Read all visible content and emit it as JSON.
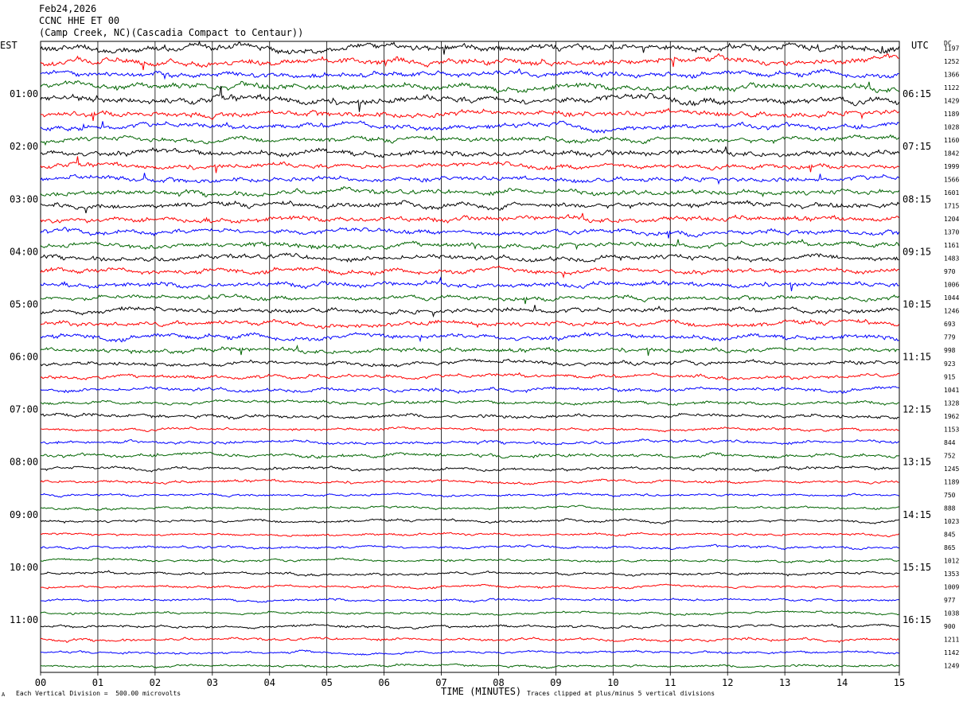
{
  "header": {
    "date": "Feb24,2026",
    "channel": "CCNC HHE ET 00",
    "site": "(Camp Creek, NC)(Cascadia Compact to Centaur))"
  },
  "left_label": "EST",
  "right_label": "UTC",
  "dc_label": "DC",
  "footer": {
    "scale_note": "Each Vertical Division =  500.00 microvolts",
    "clip_note": "Traces clipped at plus/minus 5 vertical divisions",
    "glyph": "A"
  },
  "colors": {
    "cycle": [
      "#000000",
      "#ff0000",
      "#0000ff",
      "#006400"
    ],
    "grid": "#000000"
  },
  "chart_data": {
    "type": "line",
    "title": "CCNC HHE ET 00",
    "xlabel": "TIME (MINUTES)",
    "ylabel": "",
    "xlim": [
      0,
      15
    ],
    "x_ticks": [
      "00",
      "01",
      "02",
      "03",
      "04",
      "05",
      "06",
      "07",
      "08",
      "09",
      "10",
      "11",
      "12",
      "13",
      "14",
      "15"
    ],
    "rows": 48,
    "left_time_labels": [
      "01:00",
      "02:00",
      "03:00",
      "04:00",
      "05:00",
      "06:00",
      "07:00",
      "08:00",
      "09:00",
      "10:00",
      "11:00"
    ],
    "right_time_labels": [
      "06:15",
      "07:15",
      "08:15",
      "09:15",
      "10:15",
      "11:15",
      "12:15",
      "13:15",
      "14:15",
      "15:15",
      "16:15"
    ],
    "dc_values": [
      "1197",
      "1252",
      "1366",
      "1122",
      "1429",
      "1189",
      "1028",
      "1160",
      "1842",
      "1999",
      "1566",
      "1601",
      "1715",
      "1204",
      "1370",
      "1161",
      "1483",
      "970",
      "1006",
      "1044",
      "1246",
      "693",
      "779",
      "998",
      "923",
      "915",
      "1041",
      "1328",
      "1962",
      "1153",
      "844",
      "752",
      "1245",
      "1189",
      "750",
      "888",
      "1023",
      "845",
      "865",
      "1012",
      "1353",
      "1009",
      "977",
      "1038",
      "900",
      "1211",
      "1142",
      "1249"
    ],
    "trace_amplitude": [
      3.2,
      3.0,
      2.6,
      3.0,
      3.4,
      2.8,
      2.6,
      2.4,
      2.8,
      2.4,
      2.4,
      2.6,
      2.6,
      2.6,
      2.4,
      2.4,
      2.6,
      2.4,
      2.4,
      2.2,
      2.4,
      2.4,
      2.4,
      2.2,
      2.0,
      1.8,
      1.8,
      1.6,
      1.8,
      1.4,
      1.6,
      1.8,
      1.6,
      1.4,
      1.2,
      1.2,
      1.3,
      1.2,
      1.3,
      1.2,
      1.3,
      1.2,
      1.2,
      1.2,
      1.3,
      1.4,
      1.2,
      1.2
    ]
  }
}
